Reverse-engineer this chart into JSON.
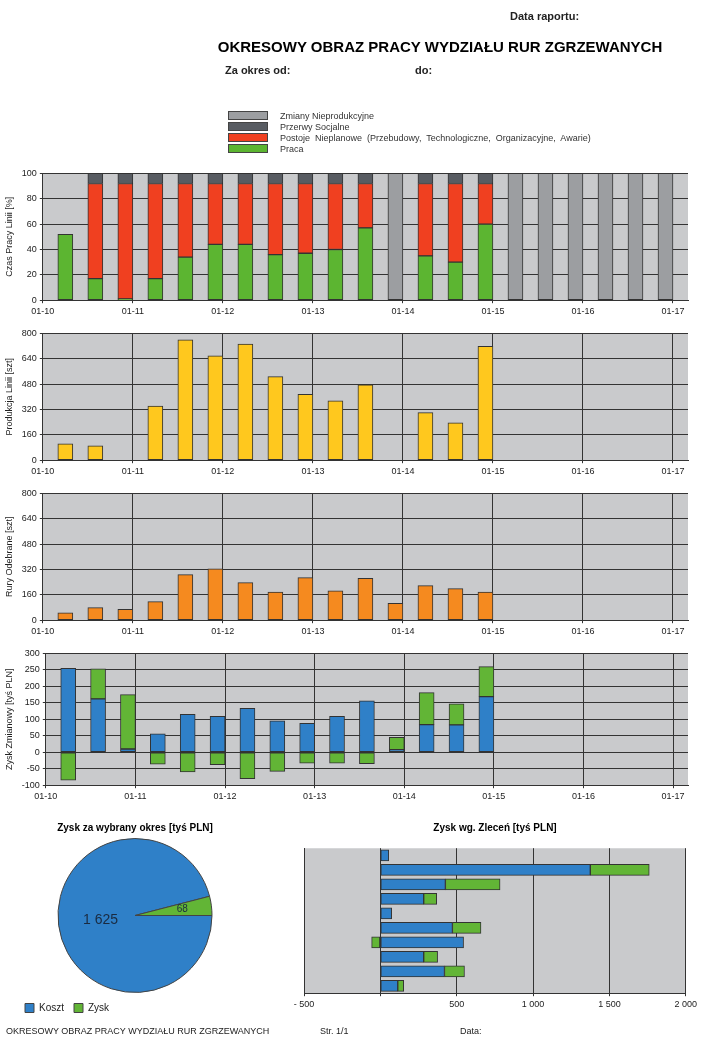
{
  "chart_data": [
    {
      "type": "bar",
      "title": "OKRESOWY OBRAZ PRACY WYDZIAŁU RUR ZGRZEWANYCH",
      "annotations": [
        "Data raportu:",
        "Za okres od:",
        "do:"
      ],
      "ylabel": "Czas Pracy Linii [%]",
      "stacked": true,
      "legend": "top",
      "x": [
        "--01-10T06:00",
        "--01-10T14:00",
        "--01-10T22:00",
        "--01-11T06:00",
        "--01-11T14:00",
        "--01-11T22:00",
        "--01-12T06:00",
        "--01-12T14:00",
        "--01-12T22:00",
        "--01-13T06:00",
        "--01-13T14:00",
        "--01-13T22:00",
        "--01-14T06:00",
        "--01-14T14:00",
        "--01-14T22:00",
        "--01-15T06:00",
        "--01-15T14:00",
        "--01-15T22:00",
        "--01-16T06:00",
        "--01-16T14:00",
        "--01-16T22:00"
      ],
      "series": [
        {
          "name": "Praca",
          "color": "#5cb531",
          "values": [
            52,
            17,
            1,
            17,
            34,
            44,
            44,
            36,
            37,
            40,
            57,
            null,
            35,
            30,
            60,
            null,
            null,
            null,
            null,
            null,
            null
          ]
        },
        {
          "name": "Postoje  Nieplanowe  (Przebudowy,  Technologiczne,  Organizacyjne,  Awarie)",
          "color": "#f04020",
          "values": [
            null,
            75,
            91,
            75,
            58,
            48,
            48,
            56,
            55,
            52,
            35,
            null,
            57,
            62,
            32,
            null,
            null,
            null,
            null,
            null,
            null
          ]
        },
        {
          "name": "Przerwy Socjalne",
          "color": "#585c62",
          "values": [
            null,
            8,
            8,
            8,
            8,
            8,
            8,
            8,
            8,
            8,
            8,
            null,
            8,
            8,
            8,
            null,
            null,
            null,
            null,
            null,
            null
          ]
        },
        {
          "name": "Zmiany Nieprodukcyjne",
          "color": "#9c9ea1",
          "values": [
            null,
            null,
            null,
            null,
            null,
            null,
            null,
            null,
            null,
            null,
            null,
            100,
            null,
            null,
            null,
            100,
            100,
            100,
            100,
            100,
            100
          ]
        }
      ],
      "xlim": [
        "--01-10",
        "--01-17T04:00"
      ],
      "xticks": [
        {
          "value": "--01-10",
          "label": "01-10"
        },
        {
          "value": "--01-11",
          "label": "01-11"
        },
        {
          "value": "--01-12",
          "label": "01-12"
        },
        {
          "value": "--01-13",
          "label": "01-13"
        },
        {
          "value": "--01-14",
          "label": "01-14"
        },
        {
          "value": "--01-15",
          "label": "01-15"
        },
        {
          "value": "--01-16",
          "label": "01-16"
        },
        {
          "value": "--01-17",
          "label": "01-17"
        }
      ],
      "ylim": [
        0,
        100
      ],
      "yticks": [
        0,
        20,
        40,
        60,
        80,
        100
      ],
      "grid": true
    },
    {
      "type": "bar",
      "ylabel": "Produkcja Linii [szt]",
      "color": "#ffc81e",
      "x": [
        "--01-10T06:00",
        "--01-10T14:00",
        "--01-10T22:00",
        "--01-11T06:00",
        "--01-11T14:00",
        "--01-11T22:00",
        "--01-12T06:00",
        "--01-12T14:00",
        "--01-12T22:00",
        "--01-13T06:00",
        "--01-13T14:00",
        "--01-13T22:00",
        "--01-14T06:00",
        "--01-14T14:00",
        "--01-14T22:00"
      ],
      "values": [
        104,
        90,
        null,
        341,
        759,
        658,
        732,
        527,
        415,
        374,
        475,
        null,
        300,
        235,
        718
      ],
      "xlim": [
        "--01-10",
        "--01-17T04:00"
      ],
      "xticks": [
        {
          "value": "--01-10",
          "label": "01-10"
        },
        {
          "value": "--01-11",
          "label": "01-11"
        },
        {
          "value": "--01-12",
          "label": "01-12"
        },
        {
          "value": "--01-13",
          "label": "01-13"
        },
        {
          "value": "--01-14",
          "label": "01-14"
        },
        {
          "value": "--01-15",
          "label": "01-15"
        },
        {
          "value": "--01-16",
          "label": "01-16"
        },
        {
          "value": "--01-17",
          "label": "01-17"
        }
      ],
      "ylim": [
        0,
        800
      ],
      "yticks": [
        0,
        160,
        320,
        480,
        640,
        800
      ],
      "grid": true
    },
    {
      "type": "bar",
      "ylabel": "Rury Odebrane [szt]",
      "color": "#f58a1f",
      "x": [
        "--01-10T06:00",
        "--01-10T14:00",
        "--01-10T22:00",
        "--01-11T06:00",
        "--01-11T14:00",
        "--01-11T22:00",
        "--01-12T06:00",
        "--01-12T14:00",
        "--01-12T22:00",
        "--01-13T06:00",
        "--01-13T14:00",
        "--01-13T22:00",
        "--01-14T06:00",
        "--01-14T14:00",
        "--01-14T22:00"
      ],
      "values": [
        46,
        79,
        68,
        117,
        288,
        324,
        237,
        177,
        269,
        185,
        264,
        106,
        218,
        199,
        177
      ],
      "xlim": [
        "--01-10",
        "--01-17T04:00"
      ],
      "xticks": [
        {
          "value": "--01-10",
          "label": "01-10"
        },
        {
          "value": "--01-11",
          "label": "01-11"
        },
        {
          "value": "--01-12",
          "label": "01-12"
        },
        {
          "value": "--01-13",
          "label": "01-13"
        },
        {
          "value": "--01-14",
          "label": "01-14"
        },
        {
          "value": "--01-15",
          "label": "01-15"
        },
        {
          "value": "--01-16",
          "label": "01-16"
        },
        {
          "value": "--01-17",
          "label": "01-17"
        }
      ],
      "ylim": [
        0,
        800
      ],
      "yticks": [
        0,
        160,
        320,
        480,
        640,
        800
      ],
      "grid": true
    },
    {
      "type": "bar",
      "ylabel": "Zysk Zmianowy [tyś PLN]",
      "stacked": true,
      "x": [
        "--01-10T06:00",
        "--01-10T14:00",
        "--01-10T22:00",
        "--01-11T06:00",
        "--01-11T14:00",
        "--01-11T22:00",
        "--01-12T06:00",
        "--01-12T14:00",
        "--01-12T22:00",
        "--01-13T06:00",
        "--01-13T14:00",
        "--01-13T22:00",
        "--01-14T06:00",
        "--01-14T14:00",
        "--01-14T22:00"
      ],
      "series": [
        {
          "color": "#2f80c8",
          "values": [
            255,
            162,
            10,
            56,
            115,
            109,
            133,
            95,
            88,
            109,
            156,
            8,
            84,
            83,
            169
          ]
        },
        {
          "color": "#62b536",
          "values": [
            -85,
            91,
            165,
            -36,
            -60,
            -38,
            -80,
            -58,
            -33,
            -33,
            -35,
            37,
            97,
            64,
            91
          ]
        }
      ],
      "xlim": [
        "--01-10",
        "--01-17T04:00"
      ],
      "xticks": [
        {
          "value": "--01-10",
          "label": "01-10"
        },
        {
          "value": "--01-11",
          "label": "01-11"
        },
        {
          "value": "--01-12",
          "label": "01-12"
        },
        {
          "value": "--01-13",
          "label": "01-13"
        },
        {
          "value": "--01-14",
          "label": "01-14"
        },
        {
          "value": "--01-15",
          "label": "01-15"
        },
        {
          "value": "--01-16",
          "label": "01-16"
        },
        {
          "value": "--01-17",
          "label": "01-17"
        }
      ],
      "ylim": [
        -100,
        300
      ],
      "yticks": [
        -100,
        -50,
        0,
        50,
        100,
        150,
        200,
        250,
        300
      ],
      "grid": true
    },
    {
      "type": "pie",
      "title": "Zysk za wybrany okres [tyś PLN]",
      "categories": [
        "Koszt",
        "Zysk"
      ],
      "values": [
        1625,
        68
      ],
      "colors": [
        "#2f80c8",
        "#62b536"
      ],
      "value_labels": [
        "1 625",
        "68"
      ],
      "legend": "bottom left"
    },
    {
      "type": "bar",
      "orientation": "horizontal",
      "stacked": true,
      "title": "Zysk wg. Zleceń [tyś PLN]",
      "categories": [
        null,
        null,
        null,
        null,
        null,
        null,
        null,
        null,
        null,
        null
      ],
      "series": [
        {
          "color": "#2f80c8",
          "values": [
            55,
            1375,
            426,
            284,
            74,
            472,
            545,
            284,
            420,
            114
          ]
        },
        {
          "color": "#62b536",
          "values": [
            null,
            386,
            358,
            85,
            null,
            187,
            -57,
            91,
            131,
            39
          ]
        }
      ],
      "xlim": [
        -500,
        2000
      ],
      "xticks": [
        {
          "value": -500,
          "label": "- 500"
        },
        {
          "value": 0,
          "label": null
        },
        500,
        {
          "value": 1000,
          "label": "1 000"
        },
        {
          "value": 1500,
          "label": "1 500"
        },
        {
          "value": 2000,
          "label": "2 000"
        }
      ],
      "grid": "x"
    },
    {
      "type": "other",
      "annotations": [
        "OKRESOWY OBRAZ PRACY WYDZIAŁU RUR ZGRZEWANYCH",
        "Str. 1/1",
        "Data:"
      ]
    }
  ]
}
